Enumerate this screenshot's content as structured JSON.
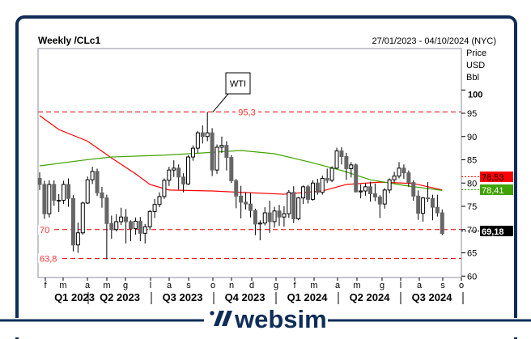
{
  "header": {
    "title": "Weekly /CLc1",
    "range": "27/01/2023 - 04/10/2024 (NYC)"
  },
  "axis_unit": [
    "Price",
    "USD",
    "Bbl"
  ],
  "logo": {
    "text": "websim"
  },
  "chart_data": {
    "type": "candlestick",
    "title": "Weekly /CLc1",
    "ylabel": "Price USD Bbl",
    "ylim": [
      58.5,
      108.7
    ],
    "yticks": [
      "100",
      "95",
      "90",
      "85",
      "80",
      "75",
      "70",
      "65",
      "60"
    ],
    "months": [
      "f",
      "m",
      "a",
      "m",
      "g",
      "l",
      "a",
      "s",
      "o",
      "n",
      "d",
      "g",
      "f",
      "m",
      "a",
      "m",
      "g",
      "l",
      "a",
      "s",
      "o"
    ],
    "quarters": [
      "Q1 2023",
      "Q2 2023",
      "Q3 2023",
      "Q4 2023",
      "Q1 2024",
      "Q2 2024",
      "Q3 2024"
    ],
    "grid": false,
    "open": [
      81.0,
      79.7,
      73.4,
      79.7,
      76.3,
      76.3,
      79.7,
      76.7,
      66.7,
      69.3,
      75.7,
      80.7,
      82.5,
      77.9,
      76.8,
      71.3,
      70.0,
      71.7,
      72.7,
      71.7,
      70.2,
      71.8,
      69.2,
      70.6,
      73.9,
      75.4,
      77.1,
      80.6,
      82.8,
      83.2,
      81.3,
      79.8,
      85.6,
      87.5,
      90.8,
      90.0,
      90.8,
      82.8,
      87.7,
      88.1,
      85.5,
      80.5,
      77.2,
      75.9,
      75.5,
      74.1,
      71.2,
      71.4,
      73.6,
      71.7,
      74.0,
      72.7,
      73.4,
      78.0,
      72.3,
      76.8,
      79.2,
      76.5,
      80.0,
      78.0,
      81.0,
      80.6,
      83.2,
      86.9,
      85.7,
      83.1,
      83.9,
      78.1,
      78.3,
      79.2,
      77.7,
      77.0,
      75.5,
      78.5,
      80.7,
      81.5,
      83.2,
      82.2,
      80.1,
      77.2,
      73.5,
      76.8,
      76.7,
      74.8,
      73.6
    ],
    "high": [
      82.3,
      80.5,
      80.6,
      80.6,
      77.6,
      80.5,
      81.0,
      77.4,
      71.5,
      76.0,
      81.4,
      83.5,
      83.1,
      79.2,
      77.5,
      73.0,
      73.3,
      74.7,
      74.4,
      72.0,
      72.6,
      72.7,
      71.2,
      74.2,
      76.6,
      78.0,
      81.0,
      83.5,
      84.9,
      84.0,
      82.1,
      86.0,
      88.1,
      91.2,
      92.4,
      95.3,
      91.8,
      88.3,
      90.0,
      89.0,
      86.0,
      80.9,
      79.4,
      78.0,
      77.9,
      74.5,
      72.0,
      74.8,
      76.2,
      74.9,
      75.3,
      75.0,
      78.5,
      79.3,
      77.0,
      79.5,
      79.6,
      80.6,
      80.9,
      81.6,
      83.1,
      83.6,
      87.6,
      87.7,
      86.5,
      84.5,
      84.2,
      79.7,
      79.9,
      80.3,
      79.9,
      77.4,
      78.9,
      81.0,
      82.4,
      84.5,
      84.0,
      82.7,
      80.6,
      78.4,
      77.0,
      80.2,
      77.5,
      77.5,
      74.3
    ],
    "low": [
      78.5,
      72.3,
      72.6,
      75.1,
      73.8,
      75.5,
      74.9,
      65.3,
      65.0,
      68.9,
      75.5,
      79.8,
      77.2,
      74.7,
      63.6,
      68.0,
      69.6,
      71.0,
      67.0,
      67.5,
      68.9,
      67.5,
      67.0,
      69.9,
      72.5,
      74.8,
      76.6,
      79.4,
      81.3,
      78.6,
      78.0,
      79.6,
      84.8,
      86.5,
      88.5,
      89.0,
      81.5,
      82.0,
      86.5,
      82.7,
      80.0,
      74.6,
      72.4,
      74.3,
      72.6,
      68.8,
      67.7,
      70.9,
      69.3,
      70.4,
      70.8,
      70.6,
      72.5,
      71.4,
      72.0,
      75.5,
      75.6,
      76.2,
      77.5,
      77.5,
      80.0,
      80.2,
      83.0,
      84.0,
      80.7,
      81.2,
      78.0,
      76.7,
      77.3,
      76.0,
      76.1,
      72.5,
      74.5,
      77.8,
      80.1,
      81.0,
      80.9,
      79.2,
      76.2,
      72.1,
      71.7,
      75.9,
      72.0,
      72.8,
      68.8
    ],
    "close": [
      79.7,
      73.4,
      79.7,
      76.3,
      76.3,
      79.7,
      76.7,
      66.7,
      69.3,
      75.7,
      80.7,
      82.5,
      77.9,
      76.8,
      71.3,
      70.0,
      71.7,
      72.7,
      71.7,
      70.2,
      71.8,
      69.2,
      70.6,
      73.9,
      75.4,
      77.1,
      80.6,
      82.8,
      83.2,
      81.3,
      79.8,
      85.6,
      87.5,
      90.8,
      90.0,
      90.8,
      82.8,
      87.7,
      88.1,
      85.5,
      80.5,
      77.2,
      75.9,
      75.5,
      74.1,
      71.2,
      71.4,
      73.6,
      71.7,
      74.0,
      72.7,
      73.4,
      78.0,
      72.3,
      76.8,
      79.2,
      76.5,
      80.0,
      78.0,
      81.0,
      80.6,
      83.2,
      86.9,
      85.7,
      83.1,
      83.9,
      78.1,
      78.3,
      79.2,
      77.7,
      77.0,
      75.5,
      78.5,
      80.7,
      81.5,
      83.2,
      82.2,
      80.1,
      77.2,
      73.5,
      76.8,
      76.7,
      74.8,
      73.6,
      69.18
    ],
    "moving_averages": [
      {
        "color": "#ff0000",
        "last": "78,53",
        "points": [
          [
            0,
            94.5
          ],
          [
            4,
            91.5
          ],
          [
            10,
            89
          ],
          [
            15,
            85.4
          ],
          [
            20,
            82
          ],
          [
            23,
            79.7
          ],
          [
            27,
            78.5
          ],
          [
            36,
            78.3
          ],
          [
            42,
            78.0
          ],
          [
            51,
            77.6
          ],
          [
            59,
            78.3
          ],
          [
            64,
            79.7
          ],
          [
            71,
            80.2
          ],
          [
            78,
            79.9
          ],
          [
            84,
            78.53
          ]
        ]
      },
      {
        "color": "#3fa300",
        "last": "78,41",
        "points": [
          [
            0,
            83.7
          ],
          [
            9,
            84.9
          ],
          [
            15,
            85.6
          ],
          [
            26,
            86
          ],
          [
            36,
            86.6
          ],
          [
            42,
            87
          ],
          [
            49,
            86.3
          ],
          [
            56,
            84.6
          ],
          [
            63,
            82.7
          ],
          [
            69,
            80.7
          ],
          [
            76,
            79.5
          ],
          [
            84,
            78.41
          ]
        ]
      }
    ],
    "last_price": {
      "label": "69,18",
      "value": 69.18
    },
    "levels": [
      {
        "value": 95.3,
        "label": "95,3"
      },
      {
        "value": 70,
        "label": "70"
      },
      {
        "value": 63.8,
        "label": "63,8"
      }
    ],
    "annotation": {
      "text": "WTI",
      "target_value": 95.3
    }
  }
}
